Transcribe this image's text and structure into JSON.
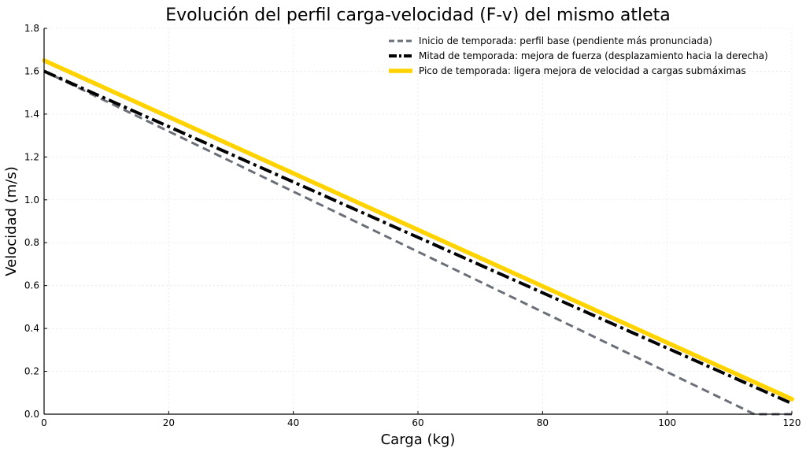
{
  "chart_data": {
    "type": "line",
    "title": "Evolución del perfil carga-velocidad (F-v) del mismo atleta",
    "xlabel": "Carga (kg)",
    "ylabel": "Velocidad (m/s)",
    "xlim": [
      0,
      120
    ],
    "ylim": [
      0,
      1.8
    ],
    "xticks": [
      0,
      20,
      40,
      60,
      80,
      100,
      120
    ],
    "yticks": [
      0.0,
      0.2,
      0.4,
      0.6,
      0.8,
      1.0,
      1.2,
      1.4,
      1.6,
      1.8
    ],
    "xtick_labels": [
      "0",
      "20",
      "40",
      "60",
      "80",
      "100",
      "120"
    ],
    "ytick_labels": [
      "0.0",
      "0.2",
      "0.4",
      "0.6",
      "0.8",
      "1.0",
      "1.2",
      "1.4",
      "1.6",
      "1.8"
    ],
    "grid": true,
    "legend_position": "top-right",
    "series": [
      {
        "name": "Inicio de temporada: perfil base (pendiente más pronunciada)",
        "color": "#6b6f78",
        "style": "dashed",
        "points": [
          [
            0,
            1.6
          ],
          [
            114,
            0.0
          ],
          [
            120,
            0.0
          ]
        ]
      },
      {
        "name": "Mitad de temporada: mejora de fuerza (desplazamiento hacia la derecha)",
        "color": "#000000",
        "style": "dashdot",
        "points": [
          [
            0,
            1.6
          ],
          [
            120,
            0.05
          ]
        ]
      },
      {
        "name": "Pico de temporada: ligera mejora de velocidad a cargas submáximas",
        "color": "#ffd200",
        "style": "solid",
        "points": [
          [
            0,
            1.65
          ],
          [
            120,
            0.07
          ]
        ]
      }
    ]
  }
}
